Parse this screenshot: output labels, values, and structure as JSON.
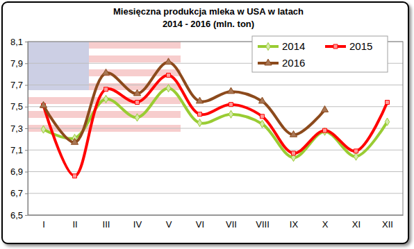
{
  "chart_data": {
    "type": "line",
    "title": "Miesięczna produkcja mleka w USA w latach",
    "subtitle": "2014 - 2016 (mln. ton)",
    "categories": [
      "I",
      "II",
      "III",
      "IV",
      "V",
      "VI",
      "VII",
      "VIII",
      "IX",
      "X",
      "XI",
      "XII"
    ],
    "series": [
      {
        "name": "2014",
        "color": "#99cc33",
        "marker": "diamond",
        "line_style": "solid",
        "values": [
          7.29,
          7.21,
          7.57,
          7.4,
          7.67,
          7.35,
          7.43,
          7.34,
          7.03,
          7.27,
          7.04,
          7.36
        ]
      },
      {
        "name": "2015",
        "color": "#ff0000",
        "marker": "square",
        "line_style": "solid",
        "values": [
          7.51,
          6.86,
          7.66,
          7.54,
          7.79,
          7.43,
          7.52,
          7.41,
          7.07,
          7.28,
          7.09,
          7.54
        ]
      },
      {
        "name": "2016",
        "color": "#8c4a1c",
        "marker": "triangle",
        "line_style": "solid",
        "values": [
          7.51,
          7.17,
          7.81,
          7.62,
          7.91,
          7.55,
          7.64,
          7.55,
          7.24,
          7.47,
          null,
          null
        ]
      }
    ],
    "ylim": [
      6.5,
      8.1
    ],
    "yticks": [
      {
        "value": 6.5,
        "label": "6,5"
      },
      {
        "value": 6.7,
        "label": "6,7"
      },
      {
        "value": 6.9,
        "label": "6,9"
      },
      {
        "value": 7.1,
        "label": "7,1"
      },
      {
        "value": 7.3,
        "label": "7,3"
      },
      {
        "value": 7.5,
        "label": "7,5"
      },
      {
        "value": 7.7,
        "label": "7,7"
      },
      {
        "value": 7.9,
        "label": "7,9"
      },
      {
        "value": 8.1,
        "label": "8,1"
      }
    ],
    "grid": true,
    "legend": "top-right"
  }
}
